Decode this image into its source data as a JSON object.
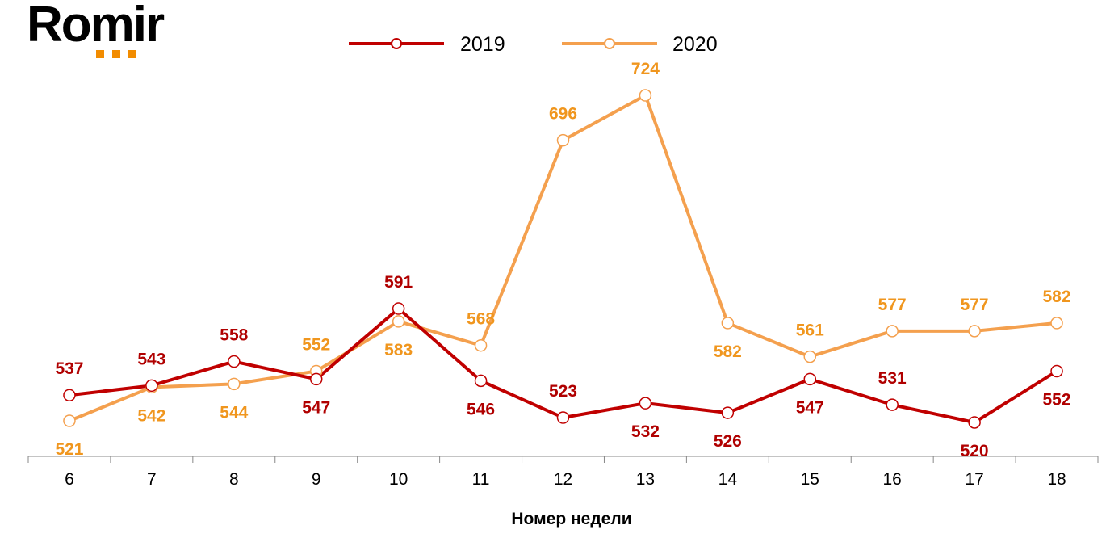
{
  "logo": {
    "text": "Romir",
    "accent_color": "#F28C00"
  },
  "chart_data": {
    "type": "line",
    "title": "",
    "xlabel": "Номер недели",
    "ylabel": "",
    "categories": [
      "6",
      "7",
      "8",
      "9",
      "10",
      "11",
      "12",
      "13",
      "14",
      "15",
      "16",
      "17",
      "18"
    ],
    "ylim": [
      499,
      735
    ],
    "grid": false,
    "legend_position": "top",
    "series": [
      {
        "name": "2019",
        "color": "#C00000",
        "label_color": "#B00000",
        "values": [
          537,
          543,
          558,
          547,
          591,
          546,
          523,
          532,
          526,
          547,
          531,
          520,
          552
        ]
      },
      {
        "name": "2020",
        "color": "#F4A04E",
        "label_color": "#F0961E",
        "values": [
          521,
          542,
          544,
          552,
          583,
          568,
          696,
          724,
          582,
          561,
          577,
          577,
          582
        ]
      }
    ]
  }
}
